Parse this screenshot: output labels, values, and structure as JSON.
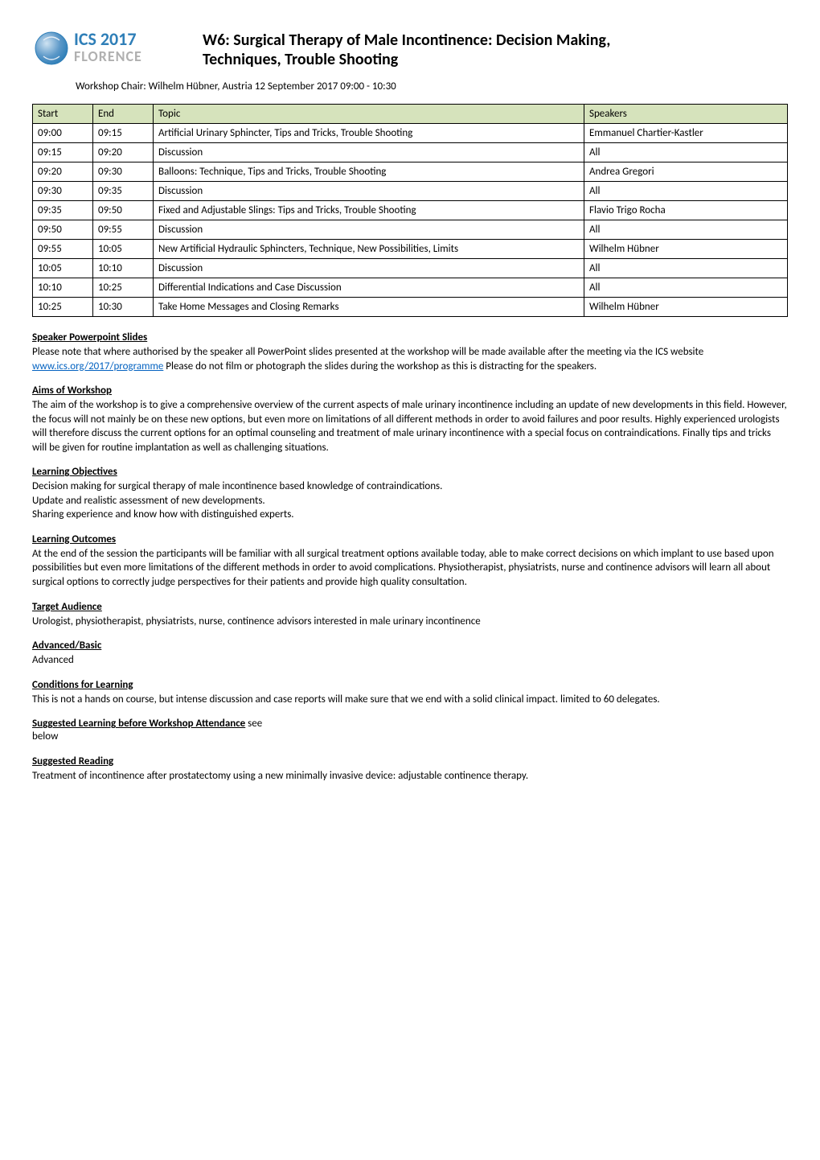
{
  "colors": {
    "logo_blue": "#2f7fb8",
    "logo_gray": "#b0b0b0",
    "orb_grad_top": "#8fb5d6",
    "orb_grad_bot": "#2f7fb8",
    "table_header_bg": "#d6e3bc",
    "table_border": "#000000",
    "link": "#0563c1",
    "text": "#000000",
    "page_bg": "#ffffff"
  },
  "logo": {
    "top_text": "ICS 2017",
    "bottom_text": "FLORENCE"
  },
  "title": {
    "line1": "W6: Surgical Therapy of Male Incontinence: Decision Making,",
    "line2": "Techniques, Trouble Shooting"
  },
  "subhead": "Workshop Chair: Wilhelm Hübner, Austria 12 September 2017 09:00 - 10:30",
  "schedule": {
    "headers": {
      "start": "Start",
      "end": "End",
      "topic": "Topic",
      "speakers": "Speakers"
    },
    "rows": [
      {
        "start": "09:00",
        "end": "09:15",
        "topic": "Artificial Urinary Sphincter, Tips and Tricks, Trouble Shooting",
        "speakers": "Emmanuel Chartier-Kastler"
      },
      {
        "start": "09:15",
        "end": "09:20",
        "topic": "Discussion",
        "speakers": "All"
      },
      {
        "start": "09:20",
        "end": "09:30",
        "topic": "Balloons: Technique, Tips and Tricks, Trouble Shooting",
        "speakers": "Andrea Gregori"
      },
      {
        "start": "09:30",
        "end": "09:35",
        "topic": "Discussion",
        "speakers": "All"
      },
      {
        "start": "09:35",
        "end": "09:50",
        "topic": "Fixed and Adjustable Slings: Tips and Tricks, Trouble Shooting",
        "speakers": "Flavio Trigo Rocha"
      },
      {
        "start": "09:50",
        "end": "09:55",
        "topic": "Discussion",
        "speakers": "All"
      },
      {
        "start": "09:55",
        "end": "10:05",
        "topic": "New Artificial Hydraulic Sphincters, Technique, New Possibilities, Limits",
        "speakers": "Wilhelm Hübner"
      },
      {
        "start": "10:05",
        "end": "10:10",
        "topic": "Discussion",
        "speakers": "All"
      },
      {
        "start": "10:10",
        "end": "10:25",
        "topic": "Differential Indications and Case Discussion",
        "speakers": "All"
      },
      {
        "start": "10:25",
        "end": "10:30",
        "topic": "Take Home Messages and Closing Remarks",
        "speakers": "Wilhelm Hübner"
      }
    ]
  },
  "sections": {
    "speaker_slides": {
      "heading": "Speaker Powerpoint Slides",
      "body_pre": "Please note that where authorised by the speaker all PowerPoint slides presented at the workshop will be made available after the meeting via the ICS website ",
      "link_text": "www.ics.org/2017/programme",
      "body_post": " Please do not film or photograph the slides during the workshop as this is distracting for the speakers."
    },
    "aims": {
      "heading": "Aims of Workshop",
      "body": "The aim of the workshop is to give a comprehensive overview of the current aspects of male urinary incontinence including an update of new developments in this field. However, the focus will not mainly be on these new options, but even more on limitations of all different methods in order to avoid failures and poor results. Highly experienced urologists will therefore discuss the current options for an optimal counseling and treatment of male urinary incontinence with a special focus on contraindications. Finally tips and tricks will be given for routine implantation as well as challenging situations."
    },
    "learning_objectives": {
      "heading": "Learning Objectives",
      "lines": [
        "Decision making for surgical therapy of male incontinence based knowledge of contraindications.",
        "Update and realistic assessment of new developments.",
        "Sharing experience and know how with distinguished experts."
      ]
    },
    "learning_outcomes": {
      "heading": "Learning Outcomes",
      "body": "At the end of the session the participants will be familiar with all surgical treatment options available today, able to make correct decisions on which implant to use based upon possibilities but even more limitations of the different methods in order to avoid complications. Physiotherapist, physiatrists, nurse and continence advisors will learn all about surgical options to correctly judge perspectives for their patients and provide high quality consultation."
    },
    "target_audience": {
      "heading": "Target Audience",
      "body": "Urologist, physiotherapist, physiatrists, nurse, continence advisors interested in male urinary incontinence"
    },
    "advanced_basic": {
      "heading": "Advanced/Basic",
      "body": "Advanced"
    },
    "conditions": {
      "heading": "Conditions for Learning",
      "body": "This is not a hands on course, but intense discussion and case reports will make sure that we end with a solid clinical impact. limited to 60 delegates."
    },
    "suggested_learning": {
      "heading": "Suggested Learning before Workshop Attendance",
      "body_suffix": " see",
      "body_line2": "below"
    },
    "suggested_reading": {
      "heading": "Suggested Reading",
      "body": "Treatment of incontinence after prostatectomy using a new minimally invasive device: adjustable continence therapy."
    }
  }
}
